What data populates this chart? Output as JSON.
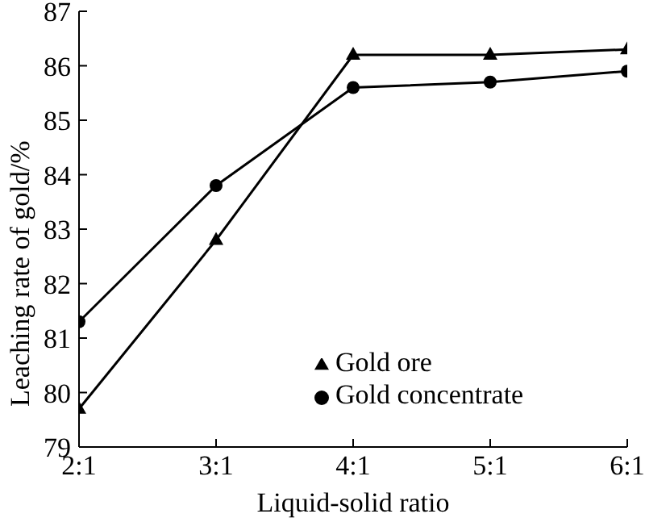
{
  "chart_data": {
    "type": "line",
    "xlabel": "Liquid-solid ratio",
    "ylabel": "Leaching rate of gold/%",
    "categories": [
      "2:1",
      "3:1",
      "4:1",
      "5:1",
      "6:1"
    ],
    "series": [
      {
        "name": "Gold ore",
        "color": "#000000",
        "marker": "triangle",
        "values": [
          79.7,
          82.8,
          86.2,
          86.2,
          86.3
        ]
      },
      {
        "name": "Gold concentrate",
        "color": "#000000",
        "marker": "circle",
        "values": [
          81.3,
          83.8,
          85.6,
          85.7,
          85.9
        ]
      }
    ],
    "ylim": [
      79,
      87
    ],
    "yticks": [
      79,
      80,
      81,
      82,
      83,
      84,
      85,
      86,
      87
    ],
    "grid": false,
    "legend": "bottom",
    "line_style": "solid"
  }
}
